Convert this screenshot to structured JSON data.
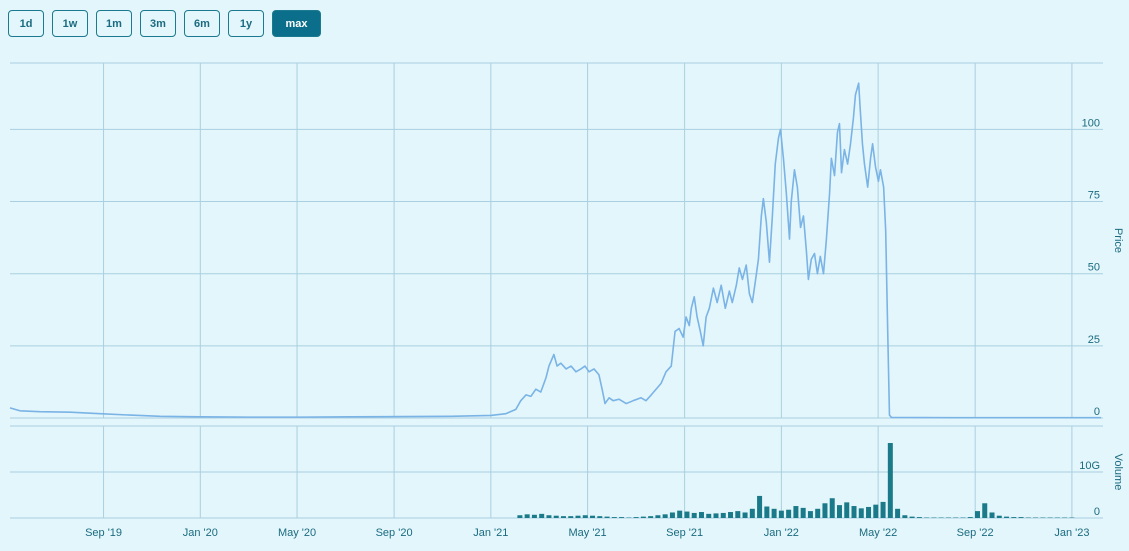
{
  "range_buttons": {
    "options": [
      "1d",
      "1w",
      "1m",
      "3m",
      "6m",
      "1y",
      "max"
    ],
    "active": "max"
  },
  "chart_data": [
    {
      "type": "line",
      "ylabel": "Price",
      "color": "#7ab3e6",
      "grid": true,
      "xlim": [
        2019.345,
        2023.107
      ],
      "ylim": [
        0,
        123
      ],
      "yticks": [
        0,
        25,
        50,
        75,
        100
      ],
      "x": [
        2019.345,
        2019.379,
        2019.448,
        2019.552,
        2019.655,
        2019.759,
        2019.862,
        2020,
        2020.172,
        2020.345,
        2020.517,
        2020.69,
        2020.862,
        2021,
        2021.052,
        2021.086,
        2021.103,
        2021.121,
        2021.138,
        2021.155,
        2021.172,
        2021.19,
        2021.2,
        2021.217,
        2021.228,
        2021.241,
        2021.259,
        2021.276,
        2021.293,
        2021.31,
        2021.324,
        2021.338,
        2021.355,
        2021.372,
        2021.383,
        2021.393,
        2021.407,
        2021.421,
        2021.441,
        2021.466,
        2021.49,
        2021.517,
        2021.534,
        2021.552,
        2021.569,
        2021.586,
        2021.603,
        2021.621,
        2021.634,
        2021.648,
        2021.662,
        2021.672,
        2021.683,
        2021.69,
        2021.7,
        2021.71,
        2021.721,
        2021.731,
        2021.741,
        2021.752,
        2021.766,
        2021.779,
        2021.793,
        2021.807,
        2021.821,
        2021.831,
        2021.845,
        2021.855,
        2021.866,
        2021.879,
        2021.89,
        2021.9,
        2021.91,
        2021.921,
        2021.931,
        2021.938,
        2021.948,
        2021.959,
        2021.969,
        2021.979,
        2021.99,
        2021.997,
        2022.007,
        2022.017,
        2022.028,
        2022.034,
        2022.045,
        2022.055,
        2022.066,
        2022.076,
        2022.086,
        2022.093,
        2022.103,
        2022.114,
        2022.124,
        2022.134,
        2022.145,
        2022.155,
        2022.166,
        2022.172,
        2022.183,
        2022.193,
        2022.2,
        2022.207,
        2022.217,
        2022.228,
        2022.238,
        2022.248,
        2022.255,
        2022.266,
        2022.272,
        2022.279,
        2022.286,
        2022.297,
        2022.307,
        2022.314,
        2022.324,
        2022.334,
        2022.341,
        2022.352,
        2022.359,
        2022.366,
        2022.372,
        2022.379,
        2022.586,
        2022.759,
        2022.931,
        2023.1
      ],
      "series": [
        {
          "values": [
            3.5,
            2.5,
            2.2,
            2,
            1.5,
            1,
            0.6,
            0.4,
            0.3,
            0.3,
            0.4,
            0.5,
            0.6,
            0.9,
            1.5,
            3,
            6,
            8,
            7.5,
            10,
            9,
            14,
            18,
            22,
            18,
            19,
            17,
            18,
            16,
            17,
            18,
            16,
            17,
            15,
            10,
            5,
            7,
            6,
            6.5,
            5,
            6,
            7,
            6,
            8,
            10,
            12,
            16,
            18,
            30,
            31,
            28,
            35,
            32,
            38,
            42,
            35,
            30,
            25,
            35,
            38,
            45,
            40,
            46,
            38,
            44,
            40,
            46,
            52,
            48,
            53,
            43,
            40,
            47,
            55,
            70,
            76,
            68,
            54,
            70,
            88,
            97,
            100,
            90,
            78,
            62,
            75,
            86,
            80,
            66,
            70,
            58,
            48,
            55,
            57,
            50,
            56,
            50,
            62,
            78,
            90,
            84,
            99,
            102,
            85,
            93,
            88,
            95,
            104,
            112,
            116,
            106,
            95,
            88,
            80,
            90,
            95,
            87,
            82,
            86,
            80,
            65,
            30,
            1,
            0.2,
            0.1,
            0.1,
            0.1,
            0.1
          ]
        }
      ]
    },
    {
      "type": "bar",
      "ylabel": "Volume",
      "color": "#1a7a8a",
      "grid": true,
      "xlim": [
        2019.345,
        2023.107
      ],
      "ylim": [
        0,
        20000000000
      ],
      "yticks": [
        0,
        {
          "value": 10000000000,
          "label": "10G"
        }
      ],
      "xticks": [
        {
          "value": 2019.667,
          "label": "Sep '19"
        },
        {
          "value": 2020,
          "label": "Jan '20"
        },
        {
          "value": 2020.333,
          "label": "May '20"
        },
        {
          "value": 2020.667,
          "label": "Sep '20"
        },
        {
          "value": 2021,
          "label": "Jan '21"
        },
        {
          "value": 2021.333,
          "label": "May '21"
        },
        {
          "value": 2021.667,
          "label": "Sep '21"
        },
        {
          "value": 2022,
          "label": "Jan '22"
        },
        {
          "value": 2022.333,
          "label": "May '22"
        },
        {
          "value": 2022.667,
          "label": "Sep '22"
        },
        {
          "value": 2023,
          "label": "Jan '23"
        }
      ],
      "x": [
        2021.1,
        2021.125,
        2021.15,
        2021.175,
        2021.2,
        2021.225,
        2021.25,
        2021.275,
        2021.3,
        2021.325,
        2021.35,
        2021.375,
        2021.4,
        2021.425,
        2021.45,
        2021.475,
        2021.5,
        2021.525,
        2021.55,
        2021.575,
        2021.6,
        2021.625,
        2021.65,
        2021.675,
        2021.7,
        2021.725,
        2021.75,
        2021.775,
        2021.8,
        2021.825,
        2021.85,
        2021.875,
        2021.9,
        2021.925,
        2021.95,
        2021.975,
        2022,
        2022.025,
        2022.05,
        2022.075,
        2022.1,
        2022.125,
        2022.15,
        2022.175,
        2022.2,
        2022.225,
        2022.25,
        2022.275,
        2022.3,
        2022.325,
        2022.35,
        2022.375,
        2022.4,
        2022.425,
        2022.45,
        2022.475,
        2022.5,
        2022.525,
        2022.55,
        2022.575,
        2022.6,
        2022.625,
        2022.65,
        2022.675,
        2022.7,
        2022.725,
        2022.75,
        2022.775,
        2022.8,
        2022.825,
        2022.85,
        2022.875,
        2022.9,
        2022.925,
        2022.95,
        2022.975,
        2023
      ],
      "values": [
        600000000,
        800000000,
        700000000,
        900000000,
        600000000,
        500000000,
        400000000,
        400000000,
        500000000,
        600000000,
        500000000,
        400000000,
        300000000,
        200000000,
        200000000,
        100000000,
        200000000,
        300000000,
        400000000,
        600000000,
        800000000,
        1200000000,
        1600000000,
        1400000000,
        1100000000,
        1300000000,
        900000000,
        1000000000,
        1100000000,
        1300000000,
        1500000000,
        1200000000,
        2000000000,
        4800000000,
        2500000000,
        2000000000,
        1600000000,
        1800000000,
        2600000000,
        2200000000,
        1500000000,
        2000000000,
        3200000000,
        4300000000,
        2800000000,
        3400000000,
        2600000000,
        2100000000,
        2400000000,
        2900000000,
        3500000000,
        16300000000,
        2000000000,
        600000000,
        300000000,
        200000000,
        100000000,
        100000000,
        100000000,
        100000000,
        100000000,
        100000000,
        200000000,
        1500000000,
        3200000000,
        1200000000,
        500000000,
        300000000,
        200000000,
        200000000,
        100000000,
        100000000,
        100000000,
        100000000,
        100000000,
        100000000,
        100000000
      ]
    }
  ]
}
